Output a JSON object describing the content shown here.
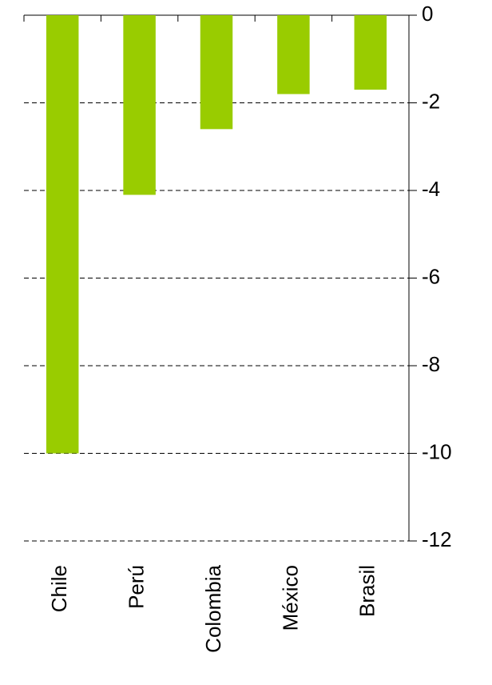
{
  "chart_data": {
    "type": "bar",
    "categories": [
      "Chile",
      "Perú",
      "Colombia",
      "México",
      "Brasil"
    ],
    "values": [
      -10,
      -4.1,
      -2.6,
      -1.8,
      -1.7
    ],
    "color": "#99cc00",
    "ylim": [
      -12,
      0
    ],
    "yticks": [
      0,
      -2,
      -4,
      -6,
      -8,
      -10,
      -12
    ],
    "grid": true,
    "y_axis_side": "right"
  }
}
